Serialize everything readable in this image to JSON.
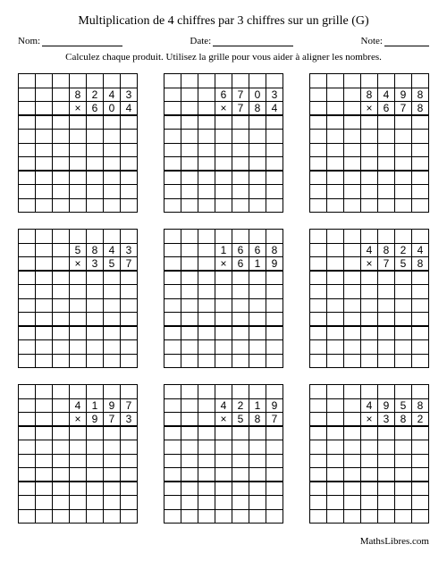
{
  "title": "Multiplication de 4 chiffres par 3 chiffres sur un grille (G)",
  "labels": {
    "nom": "Nom:",
    "date": "Date:",
    "note": "Note:"
  },
  "instructions": "Calculez chaque produit. Utilisez la grille pour vous aider à aligner les nombres.",
  "footer": "MathsLibres.com",
  "mult_sign": "×",
  "problems": [
    {
      "a": "8243",
      "b": "604"
    },
    {
      "a": "6703",
      "b": "784"
    },
    {
      "a": "8498",
      "b": "678"
    },
    {
      "a": "5843",
      "b": "357"
    },
    {
      "a": "1668",
      "b": "619"
    },
    {
      "a": "4824",
      "b": "758"
    },
    {
      "a": "4197",
      "b": "973"
    },
    {
      "a": "4219",
      "b": "587"
    },
    {
      "a": "4958",
      "b": "382"
    }
  ],
  "grid": {
    "cols": 7,
    "rows": 10,
    "a_row": 1,
    "b_row": 2,
    "heavy_rows": [
      2,
      6
    ]
  }
}
